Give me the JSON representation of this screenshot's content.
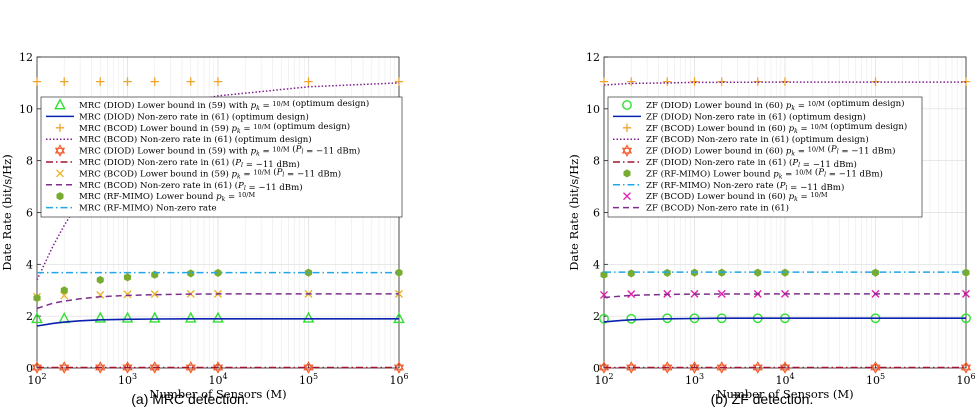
{
  "chart_data": [
    {
      "type": "line",
      "caption": "(a) MRC detection.",
      "xlabel": "Number of Sensors (M)",
      "ylabel": "Date Rate (bit/s/Hz)",
      "xscale": "log",
      "xlim": [
        100,
        1000000
      ],
      "ylim": [
        0,
        12
      ],
      "yticks": [
        "0",
        "2",
        "4",
        "6",
        "8",
        "10",
        "12"
      ],
      "xticks": [
        "10^2",
        "10^3",
        "10^4",
        "10^5",
        "10^6"
      ],
      "grid": true,
      "legend_position": "upper-left",
      "series": [
        {
          "name": "MRC (DIOD) Lower bound in (59) with p_k = 10/M (optimum design)",
          "color": "#33dd33",
          "marker": "triangle",
          "line": "none",
          "x": [
            100,
            200,
            500,
            1000,
            2000,
            5000,
            10000,
            100000,
            1000000
          ],
          "y": [
            1.9,
            1.9,
            1.92,
            1.92,
            1.92,
            1.92,
            1.92,
            1.92,
            1.9
          ]
        },
        {
          "name": "MRC (DIOD) Non-zero rate in (61) (optimum design)",
          "color": "#0a22b0",
          "marker": "none",
          "line": "solid",
          "x": [
            100,
            150,
            200,
            300,
            500,
            1000,
            2000,
            5000,
            10000,
            100000,
            1000000
          ],
          "y": [
            1.62,
            1.72,
            1.77,
            1.82,
            1.86,
            1.88,
            1.89,
            1.9,
            1.9,
            1.9,
            1.9
          ]
        },
        {
          "name": "MRC (BCOD) Lower bound in (59) p_k = 10/M (optimum design)",
          "color": "#f2a32a",
          "marker": "plus",
          "line": "none",
          "x": [
            100,
            200,
            500,
            1000,
            2000,
            5000,
            10000,
            100000,
            1000000
          ],
          "y": [
            11.05,
            11.05,
            11.05,
            11.05,
            11.05,
            11.05,
            11.05,
            11.05,
            11.05
          ]
        },
        {
          "name": "MRC (BCOD) Non-zero rate in (61) (optimum design)",
          "color": "#7e1f8e",
          "marker": "none",
          "line": "dotted",
          "x": [
            100,
            150,
            200,
            300,
            500,
            700,
            1000,
            2000,
            5000,
            10000,
            100000,
            1000000
          ],
          "y": [
            3.4,
            4.7,
            5.5,
            6.5,
            7.6,
            8.2,
            8.8,
            9.7,
            10.3,
            10.5,
            10.85,
            11.0
          ]
        },
        {
          "name": "MRC (DIOD) Lower bound in (59) with p_k = 10/M (P_l = -11 dBm)",
          "color": "#f25a2a",
          "marker": "hexagram",
          "line": "none",
          "x": [
            100,
            200,
            500,
            1000,
            2000,
            5000,
            10000,
            100000,
            1000000
          ],
          "y": [
            0.02,
            0.02,
            0.02,
            0.02,
            0.02,
            0.02,
            0.02,
            0.02,
            0.02
          ]
        },
        {
          "name": "MRC (DIOD) Non-zero rate in (61) (P_l = -11 dBm)",
          "color": "#a2142f",
          "marker": "none",
          "line": "dashdot",
          "x": [
            100,
            1000000
          ],
          "y": [
            0.02,
            0.02
          ]
        },
        {
          "name": "MRC (BCOD) Lower bound in (59) p_k = 10/M (P_l = -11 dBm)",
          "color": "#edb120",
          "marker": "x",
          "line": "none",
          "x": [
            100,
            200,
            500,
            1000,
            2000,
            5000,
            10000,
            100000,
            1000000
          ],
          "y": [
            2.75,
            2.8,
            2.82,
            2.84,
            2.85,
            2.86,
            2.86,
            2.86,
            2.86
          ]
        },
        {
          "name": "MRC (BCOD) Non-zero rate in (61) (P_l = -11 dBm)",
          "color": "#7e2f8e",
          "marker": "none",
          "line": "dashed",
          "x": [
            100,
            150,
            200,
            300,
            500,
            1000,
            2000,
            5000,
            10000,
            100000,
            1000000
          ],
          "y": [
            2.3,
            2.5,
            2.58,
            2.67,
            2.75,
            2.8,
            2.83,
            2.85,
            2.86,
            2.86,
            2.86
          ]
        },
        {
          "name": "MRC (RF-MIMO) Lower bound p_k = 10/M",
          "color": "#77ac30",
          "marker": "hexagon",
          "line": "none",
          "x": [
            100,
            200,
            500,
            1000,
            2000,
            5000,
            10000,
            100000,
            1000000
          ],
          "y": [
            2.7,
            3.0,
            3.4,
            3.5,
            3.6,
            3.65,
            3.67,
            3.68,
            3.68
          ]
        },
        {
          "name": "MRC (RF-MIMO) Non-zero rate",
          "color": "#22a8e8",
          "marker": "none",
          "line": "dashdot",
          "x": [
            100,
            1000000
          ],
          "y": [
            3.68,
            3.68
          ]
        }
      ]
    },
    {
      "type": "line",
      "caption": "(b) ZF detection.",
      "xlabel": "Number of Sensors (M)",
      "ylabel": "Date Rate (bit/s/Hz)",
      "xscale": "log",
      "xlim": [
        100,
        1000000
      ],
      "ylim": [
        0,
        12
      ],
      "yticks": [
        "0",
        "2",
        "4",
        "6",
        "8",
        "10",
        "12"
      ],
      "xticks": [
        "10^2",
        "10^3",
        "10^4",
        "10^5",
        "10^6"
      ],
      "grid": true,
      "legend_position": "upper-left",
      "series": [
        {
          "name": "ZF (DIOD) Lower bound in (60) p_k = 10/M (optimum design)",
          "color": "#33dd33",
          "marker": "circle",
          "line": "none",
          "x": [
            100,
            200,
            500,
            1000,
            2000,
            5000,
            10000,
            100000,
            1000000
          ],
          "y": [
            1.9,
            1.9,
            1.92,
            1.92,
            1.92,
            1.92,
            1.92,
            1.92,
            1.92
          ]
        },
        {
          "name": "ZF (DIOD) Non-zero rate in (61) (optimum design)",
          "color": "#0a22b0",
          "marker": "none",
          "line": "solid",
          "x": [
            100,
            150,
            200,
            300,
            500,
            1000,
            2000,
            5000,
            10000,
            100000,
            1000000
          ],
          "y": [
            1.78,
            1.83,
            1.86,
            1.88,
            1.9,
            1.91,
            1.92,
            1.92,
            1.92,
            1.92,
            1.92
          ]
        },
        {
          "name": "ZF (BCOD) Lower bound in (60) p_k = 10/M (optimum design)",
          "color": "#f2a32a",
          "marker": "plus",
          "line": "none",
          "x": [
            100,
            200,
            500,
            1000,
            2000,
            5000,
            10000,
            100000,
            1000000
          ],
          "y": [
            11.05,
            11.05,
            11.05,
            11.05,
            11.05,
            11.05,
            11.05,
            11.05,
            11.05
          ]
        },
        {
          "name": "ZF (BCOD) Non-zero rate in (61) (optimum design)",
          "color": "#7e1f8e",
          "marker": "none",
          "line": "dotted",
          "x": [
            100,
            200,
            500,
            1000,
            10000,
            100000,
            1000000
          ],
          "y": [
            10.92,
            10.98,
            11.0,
            11.02,
            11.03,
            11.03,
            11.03
          ]
        },
        {
          "name": "ZF (DIOD) Lower bound in (60) p_k = 10/M (P_l = -11 dBm)",
          "color": "#f25a2a",
          "marker": "hexagram",
          "line": "none",
          "x": [
            100,
            200,
            500,
            1000,
            2000,
            5000,
            10000,
            100000,
            1000000
          ],
          "y": [
            0.02,
            0.02,
            0.02,
            0.02,
            0.02,
            0.02,
            0.02,
            0.02,
            0.02
          ]
        },
        {
          "name": "ZF (DIOD) Non-zero rate in (61) (P_l = -11 dBm)",
          "color": "#a2142f",
          "marker": "none",
          "line": "dashdot",
          "x": [
            100,
            1000000
          ],
          "y": [
            0.02,
            0.02
          ]
        },
        {
          "name": "ZF (RF-MIMO) Lower bound p_k = 10/M (P_l = -11 dBm)",
          "color": "#77ac30",
          "marker": "hexagon",
          "line": "none",
          "x": [
            100,
            200,
            500,
            1000,
            2000,
            5000,
            10000,
            100000,
            1000000
          ],
          "y": [
            3.6,
            3.65,
            3.67,
            3.68,
            3.68,
            3.68,
            3.68,
            3.68,
            3.68
          ]
        },
        {
          "name": "ZF (RF-MIMO) Non-zero rate (P_l = -11 dBm)",
          "color": "#22a8e8",
          "marker": "none",
          "line": "dashdot",
          "x": [
            100,
            1000000
          ],
          "y": [
            3.7,
            3.7
          ]
        },
        {
          "name": "ZF (BCOD) Lower bound in (60) p_k = 10/M",
          "color": "#e21aa8",
          "marker": "x",
          "line": "none",
          "x": [
            100,
            200,
            500,
            1000,
            2000,
            5000,
            10000,
            100000,
            1000000
          ],
          "y": [
            2.82,
            2.85,
            2.86,
            2.86,
            2.86,
            2.86,
            2.86,
            2.86,
            2.86
          ]
        },
        {
          "name": "ZF (BCOD) Non-zero rate in (61)",
          "color": "#7e2f8e",
          "marker": "none",
          "line": "dashed",
          "x": [
            100,
            150,
            200,
            300,
            500,
            1000,
            10000,
            1000000
          ],
          "y": [
            2.72,
            2.77,
            2.8,
            2.82,
            2.84,
            2.85,
            2.86,
            2.86
          ]
        }
      ]
    }
  ]
}
